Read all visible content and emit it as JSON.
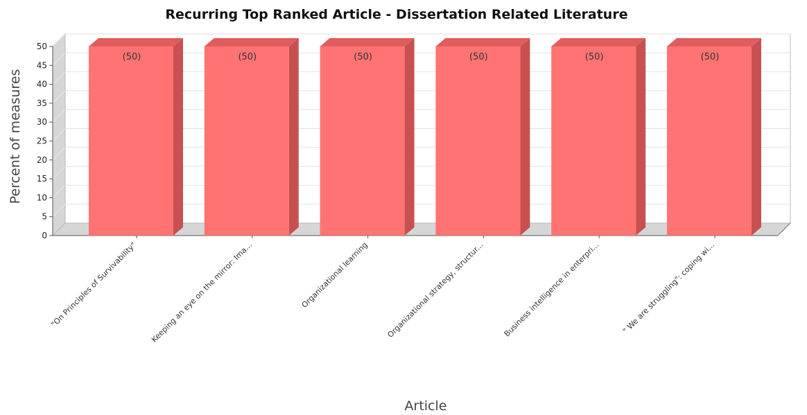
{
  "chart_data": {
    "type": "bar",
    "title": "Recurring Top Ranked Article - Dissertation Related Literature",
    "xlabel": "Article",
    "ylabel": "Percent of measures",
    "ylim": [
      0,
      50
    ],
    "yticks": [
      0,
      5,
      10,
      15,
      20,
      25,
      30,
      35,
      40,
      45,
      50
    ],
    "grid": true,
    "categories": [
      "\"On Principles of Survivability\"",
      "Keeping an eye on the mirror: Ima...",
      "Organizational learning",
      "Organizational strategy, structur...",
      "Business intelligence in enterpri...",
      "\" We are struggling\": coping wi..."
    ],
    "values": [
      50,
      50,
      50,
      50,
      50,
      50
    ],
    "data_labels": [
      "(50)",
      "(50)",
      "(50)",
      "(50)",
      "(50)",
      "(50)"
    ],
    "bar_color": "#ff7373"
  }
}
